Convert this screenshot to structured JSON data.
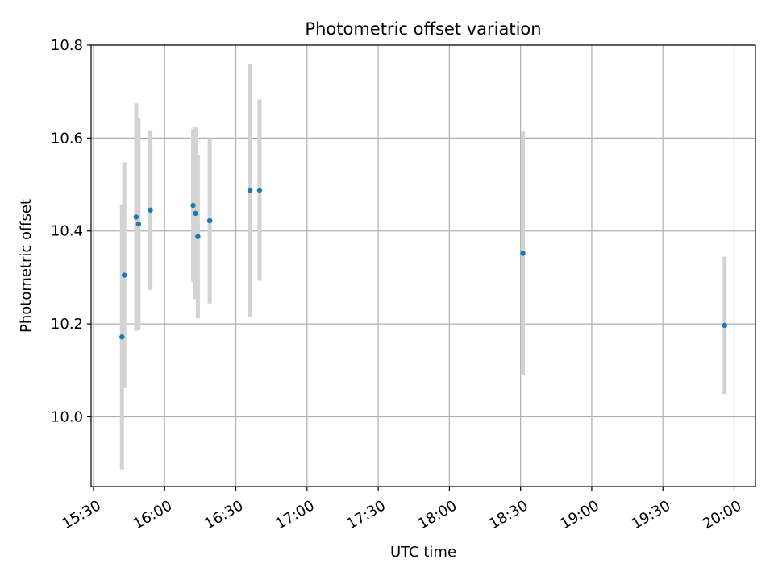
{
  "chart_data": {
    "type": "scatter",
    "title": "Photometric offset variation",
    "xlabel": "UTC time",
    "ylabel": "Photometric offset",
    "x_unit": "UTC time (HH:MM)",
    "xlim": [
      "15:29",
      "20:09"
    ],
    "ylim": [
      9.85,
      10.8
    ],
    "x_ticks": [
      "15:30",
      "16:00",
      "16:30",
      "17:00",
      "17:30",
      "18:00",
      "18:30",
      "19:00",
      "19:30",
      "20:00"
    ],
    "y_ticks": [
      10.0,
      10.2,
      10.4,
      10.6,
      10.8
    ],
    "y_tick_labels": [
      "10.0",
      "10.2",
      "10.4",
      "10.6",
      "10.8"
    ],
    "grid": true,
    "point_color": "#1f77b4",
    "errorbar_color": "#d3d3d3",
    "points": [
      {
        "time": "15:42",
        "y": 10.172,
        "err": 0.285
      },
      {
        "time": "15:43",
        "y": 10.305,
        "err": 0.243
      },
      {
        "time": "15:48",
        "y": 10.43,
        "err": 0.245
      },
      {
        "time": "15:49",
        "y": 10.415,
        "err": 0.228
      },
      {
        "time": "15:54",
        "y": 10.445,
        "err": 0.172
      },
      {
        "time": "16:12",
        "y": 10.455,
        "err": 0.165
      },
      {
        "time": "16:13",
        "y": 10.438,
        "err": 0.185
      },
      {
        "time": "16:14",
        "y": 10.388,
        "err": 0.176
      },
      {
        "time": "16:19",
        "y": 10.422,
        "err": 0.178
      },
      {
        "time": "16:36",
        "y": 10.488,
        "err": 0.272
      },
      {
        "time": "16:40",
        "y": 10.488,
        "err": 0.195
      },
      {
        "time": "18:31",
        "y": 10.352,
        "err": 0.262
      },
      {
        "time": "19:56",
        "y": 10.197,
        "err": 0.148
      }
    ]
  }
}
